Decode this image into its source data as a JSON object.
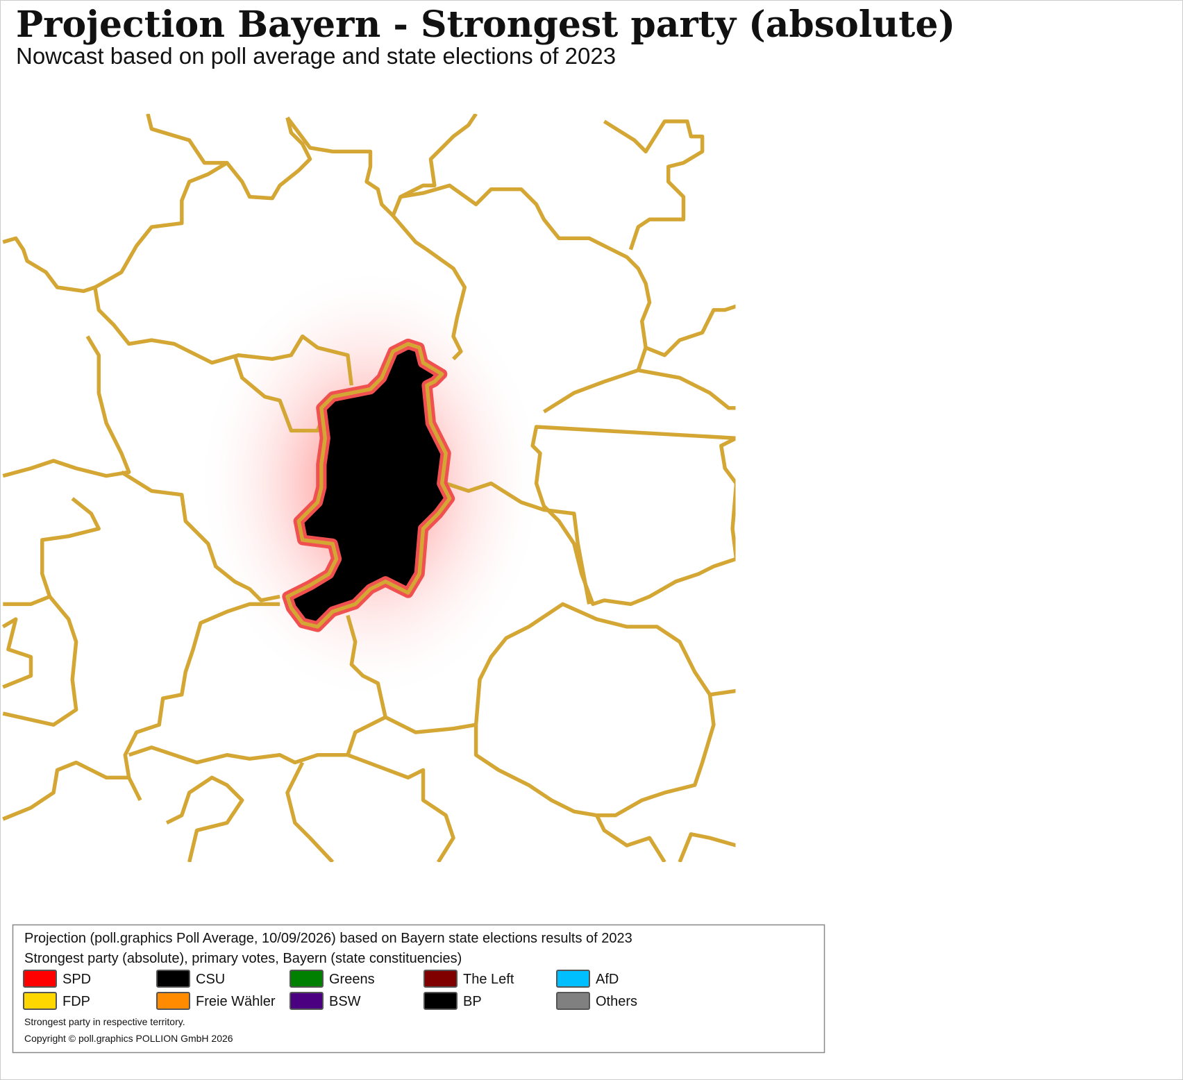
{
  "header": {
    "title": "Projection Bayern - Strongest party (absolute)",
    "subtitle": "Nowcast based on poll average and state elections of 2023"
  },
  "legend": {
    "line1": "Projection (poll.graphics Poll Average, 10/09/2026) based on Bayern state elections results of 2023",
    "line2": "Strongest party (absolute), primary votes, Bayern (state constituencies)",
    "parties": [
      {
        "name": "SPD",
        "color": "#ff0000"
      },
      {
        "name": "CSU",
        "color": "#000000"
      },
      {
        "name": "Greens",
        "color": "#008000"
      },
      {
        "name": "The Left",
        "color": "#800000"
      },
      {
        "name": "AfD",
        "color": "#00bfff"
      },
      {
        "name": "FDP",
        "color": "#ffd700"
      },
      {
        "name": "Freie Wähler",
        "color": "#ff8c00"
      },
      {
        "name": "BSW",
        "color": "#4b0082"
      },
      {
        "name": "BP",
        "color": "#000000"
      },
      {
        "name": "Others",
        "color": "#808080"
      }
    ],
    "note": "Strongest party in respective territory.",
    "copyright": "Copyright © poll.graphics POLLION GmbH 2026"
  }
}
